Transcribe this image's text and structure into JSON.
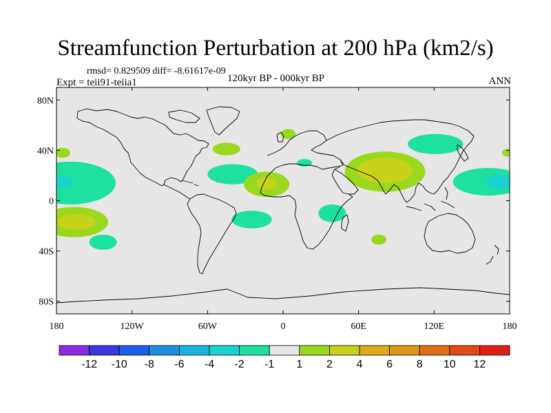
{
  "title": "Streamfunction Perturbation at 200 hPa (km2/s)",
  "stats": "rmsd= 0.829509 diff= -8.61617e-09",
  "experiment": "Expt = teii91-teiia1",
  "center_label": "120kyr BP - 000kyr BP",
  "season": "ANN",
  "map": {
    "background": "#e6e6e6",
    "lat_ticks": [
      {
        "lat": 80,
        "label": "80N"
      },
      {
        "lat": 40,
        "label": "40N"
      },
      {
        "lat": 0,
        "label": "0"
      },
      {
        "lat": -40,
        "label": "40S"
      },
      {
        "lat": -80,
        "label": "80S"
      }
    ],
    "lon_ticks": [
      {
        "lon": -180,
        "label": "180"
      },
      {
        "lon": -120,
        "label": "120W"
      },
      {
        "lon": -60,
        "label": "60W"
      },
      {
        "lon": 0,
        "label": "0"
      },
      {
        "lon": 60,
        "label": "60E"
      },
      {
        "lon": 120,
        "label": "120E"
      },
      {
        "lon": 180,
        "label": "180"
      }
    ],
    "lat_range": [
      -90,
      90
    ],
    "lon_range": [
      -180,
      180
    ]
  },
  "colorbar": {
    "colors": [
      "#8a2be2",
      "#3d35e0",
      "#1c5ee8",
      "#1e8fe0",
      "#18b4e0",
      "#1ad2d2",
      "#1ee0a0",
      "#e6e6e6",
      "#9ad81e",
      "#c8d21a",
      "#dcaa1a",
      "#e0961a",
      "#e06e14",
      "#e04a14",
      "#e01e14"
    ],
    "labels": [
      "-12",
      "-10",
      "-8",
      "-6",
      "-4",
      "-2",
      "-1",
      "1",
      "2",
      "4",
      "6",
      "8",
      "10",
      "12"
    ]
  },
  "anomalies": [
    {
      "lon": -169,
      "lat": 14,
      "rlon": 36,
      "rlat": 17,
      "value": -1,
      "color": "#1ee0a0"
    },
    {
      "lon": -176,
      "lat": 15,
      "rlon": 9,
      "rlat": 4,
      "value": -2,
      "color": "#1ad2d2"
    },
    {
      "lon": -166,
      "lat": -17,
      "rlon": 27,
      "rlat": 12,
      "value": 2,
      "color": "#9ad81e"
    },
    {
      "lon": -164,
      "lat": -17,
      "rlon": 15,
      "rlat": 6,
      "value": 4,
      "color": "#c8d21a"
    },
    {
      "lon": -143,
      "lat": -33,
      "rlon": 11,
      "rlat": 6,
      "value": -1,
      "color": "#1ee0a0"
    },
    {
      "lon": -175,
      "lat": 38,
      "rlon": 6,
      "rlat": 4,
      "value": 1,
      "color": "#9ad81e"
    },
    {
      "lon": -45,
      "lat": 41,
      "rlon": 11,
      "rlat": 5,
      "value": 2,
      "color": "#9ad81e"
    },
    {
      "lon": -40,
      "lat": 21,
      "rlon": 20,
      "rlat": 8,
      "value": -1,
      "color": "#1ee0a0"
    },
    {
      "lon": -13,
      "lat": 13,
      "rlon": 18,
      "rlat": 10,
      "value": 2,
      "color": "#9ad81e"
    },
    {
      "lon": -13,
      "lat": 14,
      "rlon": 8,
      "rlat": 5,
      "value": 4,
      "color": "#c8d21a"
    },
    {
      "lon": -25,
      "lat": -15,
      "rlon": 16,
      "rlat": 7,
      "value": -1,
      "color": "#1ee0a0"
    },
    {
      "lon": 4,
      "lat": 53,
      "rlon": 6,
      "rlat": 4,
      "value": 2,
      "color": "#9ad81e"
    },
    {
      "lon": 17,
      "lat": 30,
      "rlon": 6,
      "rlat": 3,
      "value": -1,
      "color": "#1ee0a0"
    },
    {
      "lon": 81,
      "lat": 23,
      "rlon": 32,
      "rlat": 16,
      "value": 2,
      "color": "#9ad81e"
    },
    {
      "lon": 81,
      "lat": 24,
      "rlon": 22,
      "rlat": 10,
      "value": 4,
      "color": "#c8d21a"
    },
    {
      "lon": 39,
      "lat": -10,
      "rlon": 11,
      "rlat": 7,
      "value": -1,
      "color": "#1ee0a0"
    },
    {
      "lon": 76,
      "lat": -31,
      "rlon": 6,
      "rlat": 4,
      "value": 2,
      "color": "#9ad81e"
    },
    {
      "lon": 121,
      "lat": 45,
      "rlon": 22,
      "rlat": 8,
      "value": -1,
      "color": "#1ee0a0"
    },
    {
      "lon": 163,
      "lat": 15,
      "rlon": 28,
      "rlat": 11,
      "value": -1,
      "color": "#1ee0a0"
    },
    {
      "lon": 172,
      "lat": 15,
      "rlon": 10,
      "rlat": 6,
      "value": -2,
      "color": "#1ad2d2"
    },
    {
      "lon": 178,
      "lat": 38,
      "rlon": 4,
      "rlat": 3,
      "value": 1,
      "color": "#9ad81e"
    }
  ]
}
